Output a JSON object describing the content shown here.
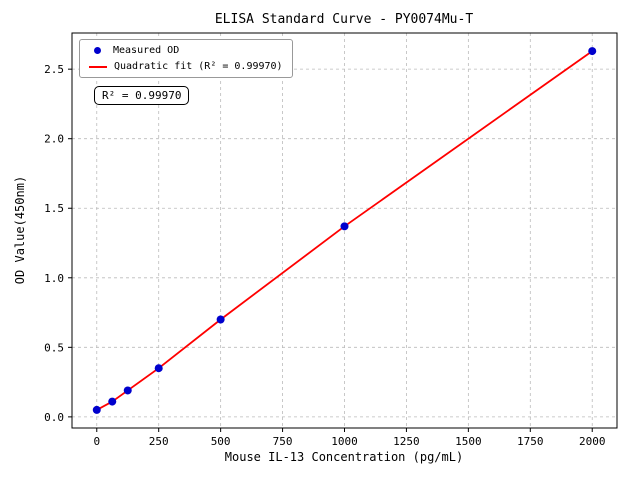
{
  "chart_data": {
    "type": "scatter",
    "title": "ELISA Standard Curve - PY0074Mu-T",
    "xlabel": "Mouse IL-13 Concentration (pg/mL)",
    "ylabel": "OD Value(450nm)",
    "xlim": [
      -100,
      2100
    ],
    "ylim": [
      -0.08,
      2.76
    ],
    "grid": true,
    "grid_color": "#bbbbbb",
    "axis_color": "#000000",
    "background": "#ffffff",
    "xticks": [
      {
        "v": 0,
        "label": "0"
      },
      {
        "v": 250,
        "label": "250"
      },
      {
        "v": 500,
        "label": "500"
      },
      {
        "v": 750,
        "label": "750"
      },
      {
        "v": 1000,
        "label": "1000"
      },
      {
        "v": 1250,
        "label": "1250"
      },
      {
        "v": 1500,
        "label": "1500"
      },
      {
        "v": 1750,
        "label": "1750"
      },
      {
        "v": 2000,
        "label": "2000"
      }
    ],
    "yticks": [
      {
        "v": 0.0,
        "label": "0.0"
      },
      {
        "v": 0.5,
        "label": "0.5"
      },
      {
        "v": 1.0,
        "label": "1.0"
      },
      {
        "v": 1.5,
        "label": "1.5"
      },
      {
        "v": 2.0,
        "label": "2.0"
      },
      {
        "v": 2.5,
        "label": "2.5"
      }
    ],
    "series": [
      {
        "name": "Measured OD",
        "type": "scatter",
        "color": "#0000cd",
        "marker_radius": 4,
        "points": [
          [
            0,
            0.05
          ],
          [
            62.5,
            0.11
          ],
          [
            125,
            0.19
          ],
          [
            250,
            0.35
          ],
          [
            500,
            0.7
          ],
          [
            1000,
            1.37
          ],
          [
            2000,
            2.63
          ]
        ]
      },
      {
        "name": "Quadratic fit",
        "type": "line",
        "color": "#ff0000",
        "line_width": 1.8,
        "points": [
          [
            0,
            0.05
          ],
          [
            62.5,
            0.11
          ],
          [
            125,
            0.19
          ],
          [
            250,
            0.35
          ],
          [
            500,
            0.7
          ],
          [
            1000,
            1.37
          ],
          [
            2000,
            2.63
          ]
        ]
      }
    ],
    "legend": {
      "position": "upper-left",
      "items": [
        {
          "label": "Measured OD",
          "marker": "dot",
          "color": "#0000cd"
        },
        {
          "label": "Quadratic fit (R² = 0.99970)",
          "marker": "line",
          "color": "#ff0000"
        }
      ]
    },
    "annotation": "R² = 0.99970"
  }
}
